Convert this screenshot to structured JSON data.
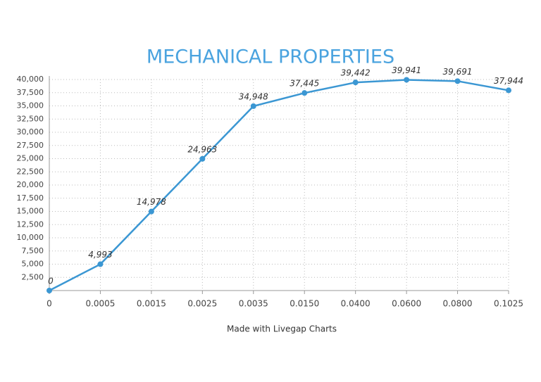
{
  "chart_data": {
    "type": "line",
    "title": "MECHANICAL PROPERTIES",
    "caption": "Made with Livegap Charts",
    "categories": [
      "0",
      "0.0005",
      "0.0015",
      "0.0025",
      "0.0035",
      "0.0150",
      "0.0400",
      "0.0600",
      "0.0800",
      "0.1025"
    ],
    "values": [
      0,
      4993,
      14978,
      24963,
      34948,
      37445,
      39442,
      39941,
      39691,
      37944
    ],
    "value_labels": [
      "0",
      "4,993",
      "14,978",
      "24,963",
      "34,948",
      "37,445",
      "39,442",
      "39,941",
      "39,691",
      "37,944"
    ],
    "color": "#3b97d3",
    "ylim": [
      0,
      40000
    ],
    "yticks": [
      {
        "value": 2500,
        "label": "2,500"
      },
      {
        "value": 5000,
        "label": "5,000"
      },
      {
        "value": 7500,
        "label": "7,500"
      },
      {
        "value": 10000,
        "label": "10,000"
      },
      {
        "value": 12500,
        "label": "12,500"
      },
      {
        "value": 15000,
        "label": "15,000"
      },
      {
        "value": 17500,
        "label": "17,500"
      },
      {
        "value": 20000,
        "label": "20,000"
      },
      {
        "value": 22500,
        "label": "22,500"
      },
      {
        "value": 25000,
        "label": "25,000"
      },
      {
        "value": 27500,
        "label": "27,500"
      },
      {
        "value": 30000,
        "label": "30,000"
      },
      {
        "value": 32500,
        "label": "32,500"
      },
      {
        "value": 35000,
        "label": "35,000"
      },
      {
        "value": 37500,
        "label": "37,500"
      },
      {
        "value": 40000,
        "label": "40,000"
      }
    ],
    "grid": true
  }
}
